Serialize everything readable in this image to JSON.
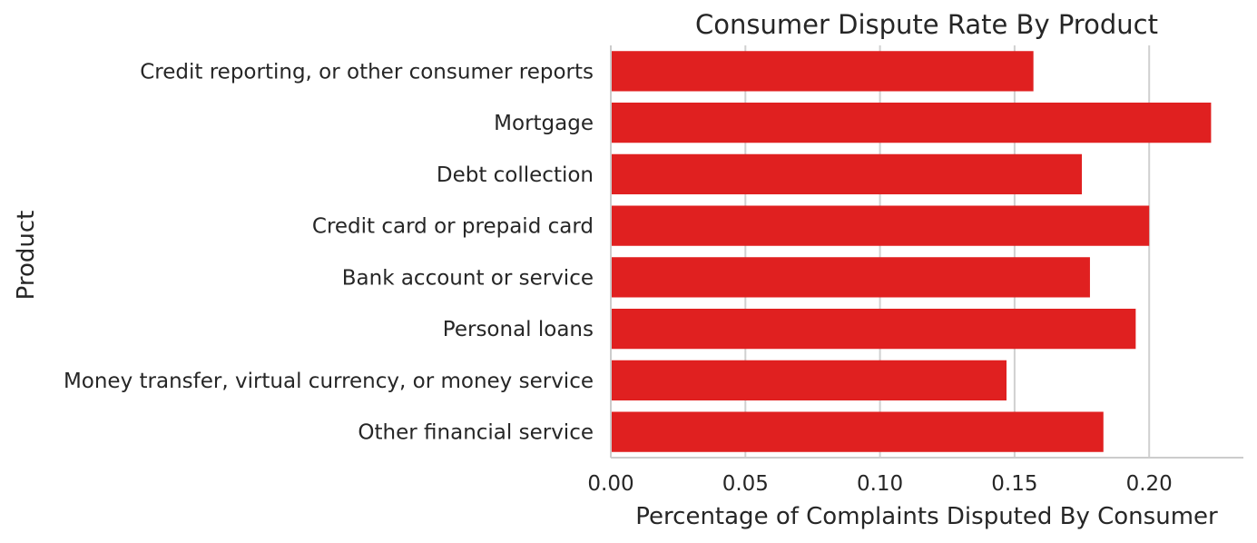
{
  "chart_data": {
    "type": "bar",
    "orientation": "horizontal",
    "title": "Consumer Dispute Rate By Product",
    "xlabel": "Percentage of Complaints Disputed By Consumer",
    "ylabel": "Product",
    "categories": [
      "Credit reporting, or other consumer reports",
      "Mortgage",
      "Debt collection",
      "Credit card or prepaid card",
      "Bank account or service",
      "Personal loans",
      "Money transfer, virtual currency, or money service",
      "Other financial service"
    ],
    "values": [
      0.157,
      0.223,
      0.175,
      0.2,
      0.178,
      0.195,
      0.147,
      0.183
    ],
    "xlim": [
      0,
      0.235
    ],
    "xticks": [
      0.0,
      0.05,
      0.1,
      0.15,
      0.2
    ],
    "xtick_labels": [
      "0.00",
      "0.05",
      "0.10",
      "0.15",
      "0.20"
    ],
    "grid": "vertical",
    "bar_color": "#e02020",
    "grid_color": "#d0d0d0",
    "spine_color": "#cccccc",
    "text_color": "#262626"
  }
}
